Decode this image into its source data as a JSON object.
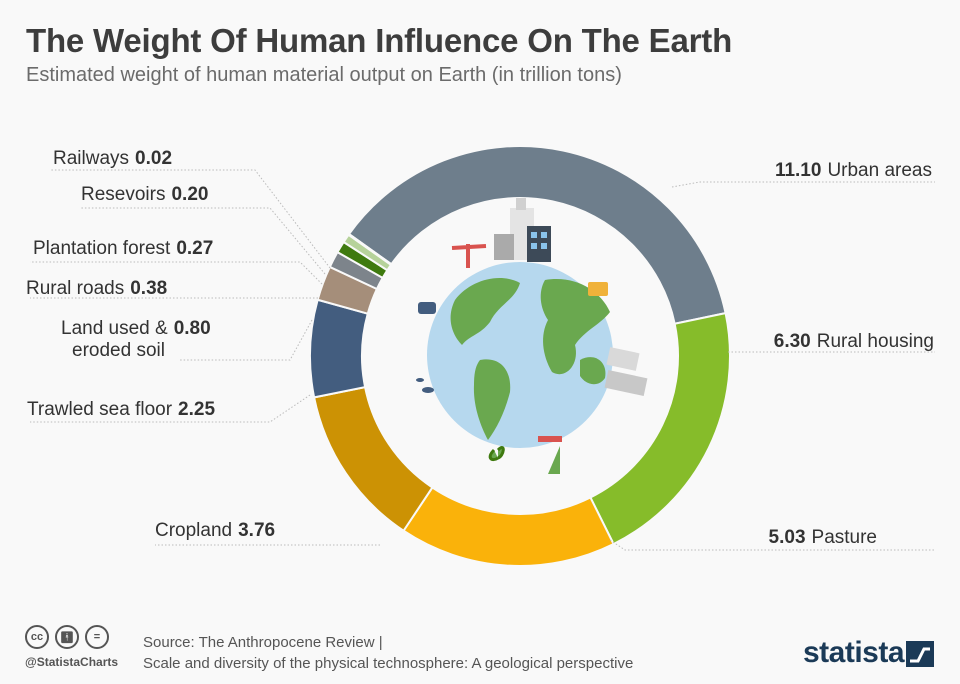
{
  "header": {
    "title": "The Weight Of Human Influence On The Earth",
    "subtitle": "Estimated weight of human material output on Earth (in trillion tons)"
  },
  "chart_data": {
    "type": "pie",
    "title": "The Weight Of Human Influence On The Earth",
    "subtitle": "Estimated weight of human material output on Earth (in trillion tons)",
    "unit": "trillion tons",
    "slices": [
      {
        "name": "Urban areas",
        "value": 11.1,
        "value_label": "11.10",
        "color": "#6e7e8c"
      },
      {
        "name": "Rural housing",
        "value": 6.3,
        "value_label": "6.30",
        "color": "#86bc2a"
      },
      {
        "name": "Pasture",
        "value": 5.03,
        "value_label": "5.03",
        "color": "#fab20a"
      },
      {
        "name": "Cropland",
        "value": 3.76,
        "value_label": "3.76",
        "color": "#cc9204"
      },
      {
        "name": "Trawled sea floor",
        "value": 2.25,
        "value_label": "2.25",
        "color": "#435d7f"
      },
      {
        "name": "Land used & eroded soil",
        "value": 0.8,
        "value_label": "0.80",
        "color": "#a58e7a"
      },
      {
        "name": "Rural roads",
        "value": 0.38,
        "value_label": "0.38",
        "color": "#7d848b"
      },
      {
        "name": "Plantation forest",
        "value": 0.27,
        "value_label": "0.27",
        "color": "#3f7a0f"
      },
      {
        "name": "Resevoirs",
        "value": 0.2,
        "value_label": "0.20",
        "color": "#b6d29a"
      },
      {
        "name": "Railways",
        "value": 0.02,
        "value_label": "0.02",
        "color": "#555555"
      }
    ]
  },
  "labels": {
    "urban": {
      "value": "11.10",
      "name": "Urban areas"
    },
    "rural_housing": {
      "value": "6.30",
      "name": "Rural housing"
    },
    "pasture": {
      "value": "5.03",
      "name": "Pasture"
    },
    "cropland": {
      "name": "Cropland",
      "value": "3.76"
    },
    "trawled": {
      "name": "Trawled sea floor",
      "value": "2.25"
    },
    "land_used": {
      "name_line1": "Land used &",
      "value": "0.80",
      "name_line2": "eroded soil"
    },
    "rural_roads": {
      "name": "Rural roads",
      "value": "0.38"
    },
    "plantation": {
      "name": "Plantation forest",
      "value": "0.27"
    },
    "resevoirs": {
      "name": "Resevoirs",
      "value": "0.20"
    },
    "railways": {
      "name": "Railways",
      "value": "0.02"
    }
  },
  "footer": {
    "source_line1": "Source: The Anthropocene Review |",
    "source_line2": "Scale and diversity of the physical technosphere: A geological perspective",
    "handle": "@StatistaCharts",
    "brand": "statista",
    "cc_icons": [
      "creative-commons-icon",
      "attribution-icon",
      "no-derivatives-icon"
    ]
  },
  "colors": {
    "background": "#f9f9f9",
    "ocean": "#b6d8ee",
    "land": "#6aa84f"
  }
}
